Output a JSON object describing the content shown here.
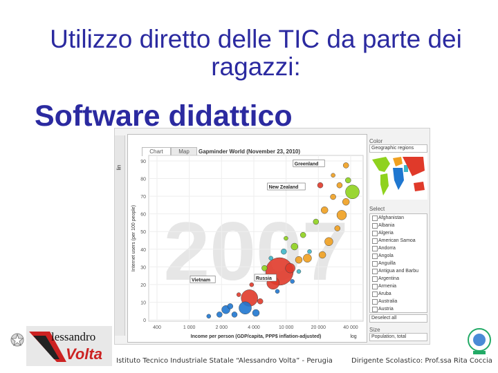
{
  "slide": {
    "title": "Utilizzo diretto delle TIC da parte dei ragazzi:",
    "subtitle": "Software didattico"
  },
  "app": {
    "tabs": [
      "Chart",
      "Map"
    ],
    "chart_title": "Gapminder World (November 23, 2010)",
    "y_axis_label": "Internet users (per 100 people)",
    "y_scale_label": "lin",
    "x_axis_label": "Income per person (GDP/capita, PPP$ inflation-adjusted)",
    "x_scale_label": "log",
    "year_watermark": "2007",
    "y_ticks": [
      "90",
      "80",
      "70",
      "60",
      "50",
      "40",
      "30",
      "20",
      "10",
      "0"
    ],
    "x_ticks": [
      "400",
      "1 000",
      "2 000",
      "4 000",
      "10 000",
      "20 000",
      "40 000"
    ],
    "country_labels": [
      "Greenland",
      "New Zealand",
      "Vietnam",
      "Russia"
    ],
    "panel": {
      "color_title": "Color",
      "color_select": "Geographic regions",
      "select_title": "Select",
      "countries": [
        "Afghanistan",
        "Albania",
        "Algeria",
        "American Samoa",
        "Andorra",
        "Angola",
        "Anguilla",
        "Antigua and Barbu",
        "Argentina",
        "Armenia",
        "Aruba",
        "Australia",
        "Austria"
      ],
      "deselect_label": "Deselect all",
      "size_title": "Size",
      "size_select": "Population, total"
    },
    "colors": {
      "africa": "#1f77d0",
      "asia": "#e03a2a",
      "europe": "#f0a020",
      "americas": "#8fd21e",
      "middle_east": "#3fb6c8"
    }
  },
  "footer": {
    "school": "Istituto Tecnico Industriale Statale “Alessandro Volta” - Perugia",
    "principal": "Dirigente Scolastico: Prof.ssa Rita Coccia"
  },
  "logo": {
    "word1": "lessandro",
    "word2": "Volta"
  }
}
